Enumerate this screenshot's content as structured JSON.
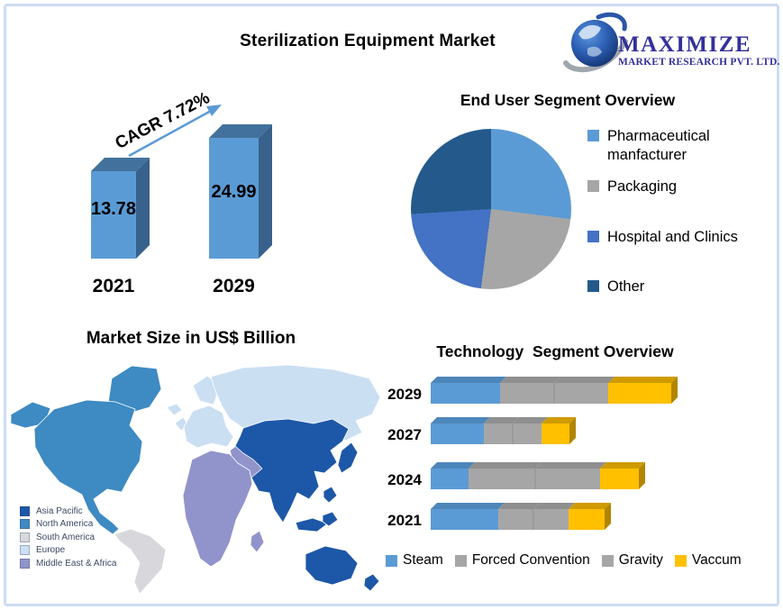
{
  "page": {
    "title": "Sterilization Equipment Market"
  },
  "logo": {
    "name": "MAXIMIZE",
    "subtitle": "MARKET RESEARCH PVT. LTD.",
    "text_color": "#34309b"
  },
  "chart_data": [
    {
      "type": "bar",
      "title": "Market Size in US$ Billion",
      "annotation": "CAGR 7.72%",
      "categories": [
        "2021",
        "2029"
      ],
      "values": [
        13.78,
        24.99
      ],
      "bar_color": "#5b9bd5",
      "bar_shade_color": "#41719c",
      "ylim": [
        0,
        28
      ]
    },
    {
      "type": "pie",
      "title": "End User Segment Overview",
      "labels": [
        "Pharmaceutical manfacturer",
        "Packaging",
        "Hospital and Clinics",
        "Other"
      ],
      "values": [
        27,
        25,
        22,
        26
      ],
      "colors": [
        "#5b9bd5",
        "#a6a6a6",
        "#4472c4",
        "#235a8b"
      ],
      "legend_position": "right"
    },
    {
      "type": "bar",
      "orientation": "horizontal",
      "stacked": true,
      "title": "Technology  Segment Overview",
      "categories": [
        "2029",
        "2027",
        "2024",
        "2021"
      ],
      "series": [
        {
          "name": "Steam",
          "color": "#5b9bd5",
          "values": [
            77,
            59,
            42,
            75
          ]
        },
        {
          "name": "Forced Convention",
          "color": "#a6a6a6",
          "values": [
            60,
            32,
            74,
            39
          ]
        },
        {
          "name": "Gravity",
          "color": "#a6a6a6",
          "values": [
            60,
            32,
            72,
            39
          ]
        },
        {
          "name": "Vaccum",
          "color": "#ffc000",
          "values": [
            70,
            31,
            43,
            40
          ]
        }
      ],
      "units": "relative-length",
      "legend_position": "bottom"
    }
  ],
  "map": {
    "legend": [
      {
        "label": "Asia Pacific",
        "color": "#1d57a8"
      },
      {
        "label": "North America",
        "color": "#3e8ac2"
      },
      {
        "label": "South America",
        "color": "#d8d8dc"
      },
      {
        "label": "Europe",
        "color": "#cbdff2"
      },
      {
        "label": "Middle East & Africa",
        "color": "#9194cb"
      }
    ]
  }
}
